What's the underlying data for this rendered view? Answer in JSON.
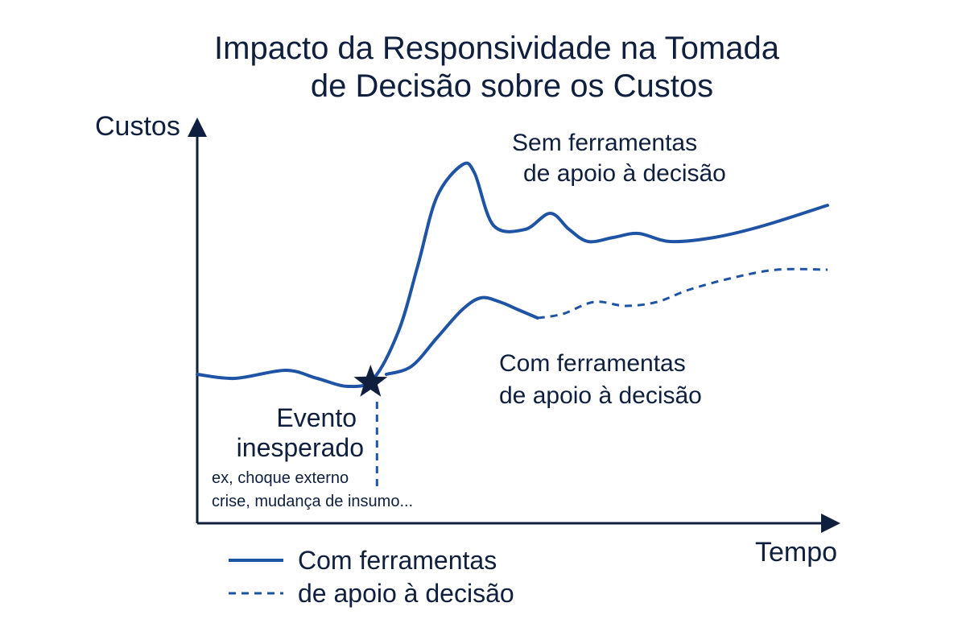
{
  "chart_data": {
    "type": "line",
    "title": [
      "Impacto da Responsividade na Tomada",
      "de Decisão sobre os Custos"
    ],
    "ylabel": "Custos",
    "xlabel": "Tempo",
    "xlim": [
      0,
      100
    ],
    "ylim": [
      0,
      100
    ],
    "grid": false,
    "series": [
      {
        "name": "Sem ferramentas de apoio à decisão",
        "style": "solid",
        "x": [
          0,
          6,
          14,
          19,
          24,
          28,
          32,
          35,
          38,
          42,
          44,
          47,
          52,
          56,
          59,
          62,
          66,
          70,
          75,
          82,
          90,
          100
        ],
        "y": [
          37,
          36,
          38,
          36,
          34,
          36,
          48,
          64,
          81,
          89,
          87,
          74,
          73,
          77,
          73,
          70,
          71,
          72,
          70,
          71,
          74,
          79
        ]
      },
      {
        "name": "Com ferramentas de apoio à decisão",
        "style": "solid-then-dashed",
        "dash_from_x": 54,
        "x": [
          30,
          34,
          38,
          42,
          45,
          48,
          51,
          54,
          58,
          63,
          68,
          73,
          78,
          85,
          92,
          100
        ],
        "y": [
          37,
          39,
          46,
          53,
          56,
          55,
          53,
          51,
          52,
          55,
          54,
          55,
          58,
          61,
          63,
          63
        ]
      }
    ],
    "event": {
      "x": 27.5,
      "y": 35,
      "marker": "star",
      "label_title": [
        "Evento",
        "inesperado"
      ],
      "label_detail": [
        "ex, choque externo",
        "crise, mudança de insumo..."
      ]
    },
    "annotations": {
      "upper": [
        "Sem ferramentas",
        "de apoio à decisão"
      ],
      "lower": [
        "Com ferramentas",
        "de apoio à decisão"
      ]
    },
    "legend": {
      "placement": "bottom-left",
      "solid_line": "solid",
      "dashed_line": "dashed",
      "text": [
        "Com ferramentas",
        "de apoio à decisão"
      ]
    },
    "colors": {
      "line": "#1f54a5",
      "star": "#0f1f3d",
      "axis": "#0f1f3d",
      "text": "#0f1f3d"
    }
  }
}
